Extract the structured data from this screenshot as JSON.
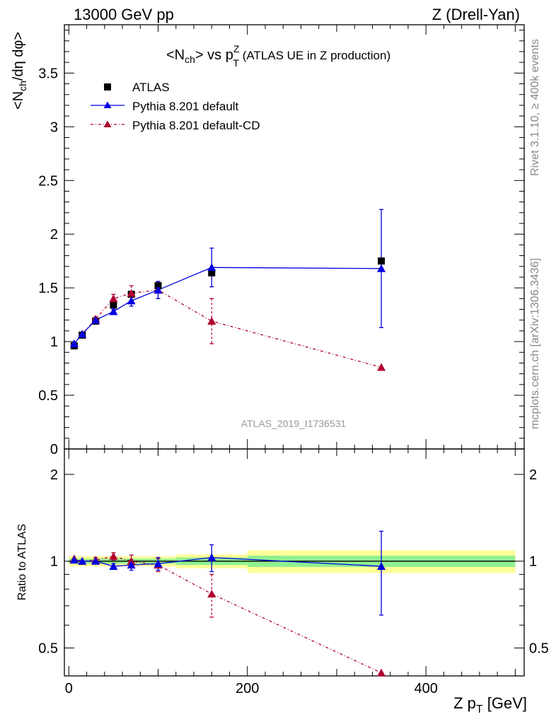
{
  "header": {
    "left": "13000 GeV pp",
    "right": "Z (Drell-Yan)"
  },
  "side_labels": {
    "rivet": "Rivet 3.1.10, ≥ 400k events",
    "mcplots": "mcplots.cern.ch [arXiv:1306.3436]"
  },
  "colors": {
    "atlas": "#000000",
    "default": "#0000e0",
    "cd": "#b00030",
    "band_inner": "#90f090",
    "band_outer": "#ffff99"
  },
  "chart_data": [
    {
      "type": "scatter",
      "title": "<N_ch> vs p_T^Z (ATLAS UE in Z production)",
      "title_parts": {
        "main": "<N",
        "sub1": "ch",
        "mid": "> vs p",
        "sup": "Z",
        "sub2": "T",
        "rest": " (ATLAS UE in Z production)"
      },
      "ylabel": "<N_ch/dη dφ>",
      "ylabel_parts": {
        "a": "<N",
        "sub": "ch",
        "b": "/dη dφ>"
      },
      "watermark": "ATLAS_2019_I1736531",
      "xlim": [
        -5,
        510
      ],
      "ylim": [
        0,
        3.95
      ],
      "yticks": [
        "0",
        "0.5",
        "1",
        "1.5",
        "2",
        "2.5",
        "3",
        "3.5"
      ],
      "legend_position": "top-left",
      "series": [
        {
          "name": "ATLAS",
          "x": [
            6,
            15,
            30,
            50,
            70,
            100,
            160,
            350
          ],
          "y": [
            0.96,
            1.06,
            1.19,
            1.34,
            1.44,
            1.52,
            1.64,
            1.75
          ]
        },
        {
          "name": "Pythia 8.201 default",
          "x": [
            6,
            15,
            30,
            50,
            70,
            100,
            160,
            350
          ],
          "y": [
            0.98,
            1.07,
            1.2,
            1.28,
            1.38,
            1.48,
            1.69,
            1.68
          ],
          "yerr": [
            0.01,
            0.01,
            0.01,
            0.02,
            0.05,
            0.08,
            0.18,
            0.55
          ]
        },
        {
          "name": "Pythia 8.201 default-CD",
          "x": [
            6,
            15,
            30,
            50,
            70,
            100,
            160,
            350
          ],
          "y": [
            0.98,
            1.07,
            1.21,
            1.4,
            1.45,
            1.48,
            1.19,
            0.76
          ],
          "yerr": [
            0.01,
            0.01,
            0.02,
            0.04,
            0.07,
            0.08,
            0.21,
            0.0
          ]
        }
      ]
    },
    {
      "type": "scatter",
      "title": "",
      "ylabel": "Ratio to ATLAS",
      "xlabel": "Z p_T [GeV]",
      "xlabel_parts": {
        "a": "Z p",
        "sub": "T",
        "b": " [GeV]"
      },
      "xlim": [
        -5,
        510
      ],
      "ylim": [
        0.4,
        2.45
      ],
      "yscale": "log",
      "yticks": [
        "0.5",
        "1",
        "2"
      ],
      "xticks": [
        "0",
        "200",
        "400"
      ],
      "uncertainty_bands": [
        {
          "x0": 0,
          "x1": 120,
          "inner": [
            0.98,
            1.02
          ],
          "outer": [
            0.96,
            1.04
          ]
        },
        {
          "x0": 120,
          "x1": 200,
          "inner": [
            0.97,
            1.03
          ],
          "outer": [
            0.945,
            1.055
          ]
        },
        {
          "x0": 200,
          "x1": 500,
          "inner": [
            0.955,
            1.045
          ],
          "outer": [
            0.91,
            1.09
          ]
        }
      ],
      "series": [
        {
          "name": "Pythia 8.201 default",
          "x": [
            6,
            15,
            30,
            50,
            70,
            100,
            160,
            350
          ],
          "y": [
            1.01,
            1.0,
            1.0,
            0.96,
            0.97,
            0.98,
            1.03,
            0.96
          ],
          "yerr": [
            0.01,
            0.01,
            0.01,
            0.02,
            0.04,
            0.05,
            0.11,
            0.31
          ]
        },
        {
          "name": "Pythia 8.201 default-CD",
          "x": [
            6,
            15,
            30,
            50,
            70,
            100,
            160,
            350
          ],
          "y": [
            1.02,
            1.0,
            1.01,
            1.04,
            1.0,
            0.97,
            0.77,
            0.41
          ],
          "yerr": [
            0.01,
            0.01,
            0.02,
            0.03,
            0.05,
            0.05,
            0.13,
            0.0
          ]
        }
      ]
    }
  ]
}
